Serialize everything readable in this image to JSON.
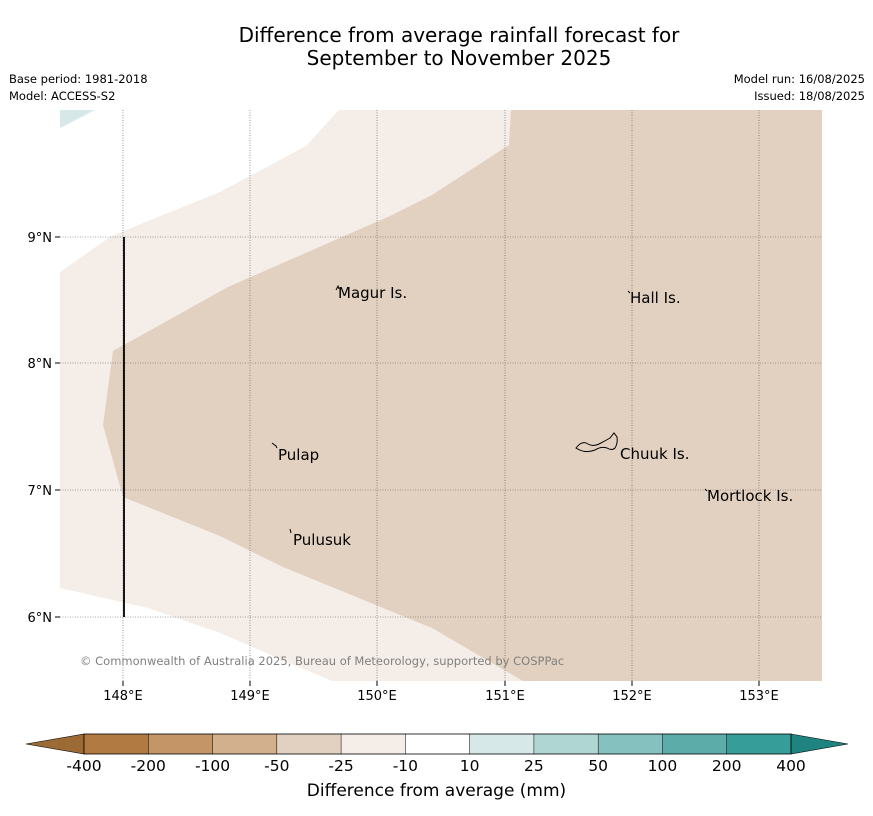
{
  "title_line1": "Difference from average rainfall forecast for",
  "title_line2": "September to November 2025",
  "base_period": "Base period: 1981-2018",
  "model": "Model: ACCESS-S2",
  "model_run": "Model run: 16/08/2025",
  "issued": "Issued: 18/08/2025",
  "copyright": "© Commonwealth of Australia 2025, Bureau of Meteorology, supported by COSPPac",
  "lat_labels": [
    "9°N",
    "8°N",
    "7°N",
    "6°N"
  ],
  "lon_labels": [
    "148°E",
    "149°E",
    "150°E",
    "151°E",
    "152°E",
    "153°E"
  ],
  "places": [
    "Magur Is.",
    "Hall Is.",
    "Pulap",
    "Chuuk Is.",
    "Mortlock Is.",
    "Pulusuk"
  ],
  "colorbar": {
    "label": "Difference from average (mm)",
    "ticks": [
      "-400",
      "-200",
      "-100",
      "-50",
      "-25",
      "-10",
      "10",
      "25",
      "50",
      "100",
      "200",
      "400"
    ],
    "colors": [
      "#9c6a35",
      "#b07a42",
      "#c49566",
      "#d2b08e",
      "#e2d1c0",
      "#f4ede8",
      "#ffffff",
      "#d6e8e7",
      "#b0d6d4",
      "#85c2bf",
      "#5cadaa",
      "#379d99",
      "#1f8480"
    ]
  }
}
